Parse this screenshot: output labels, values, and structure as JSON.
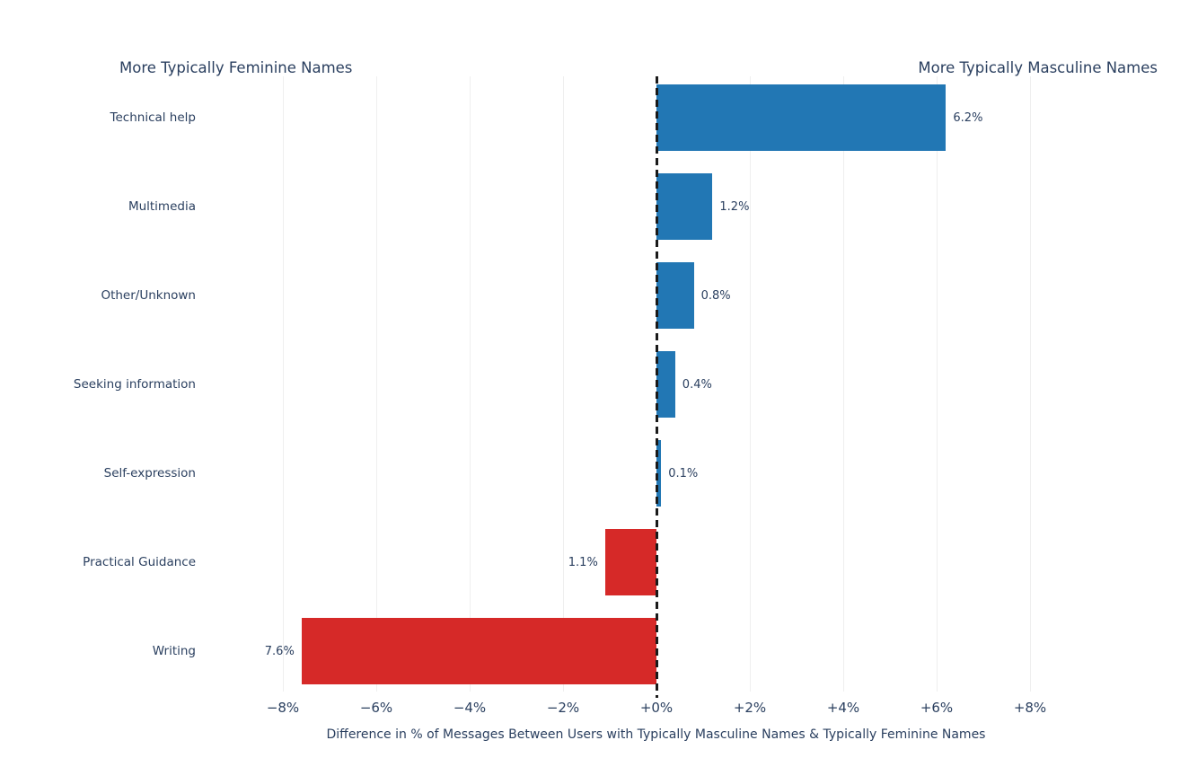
{
  "header": {
    "left": "More Typically Feminine Names",
    "right": "More Typically Masculine Names"
  },
  "chart_data": {
    "type": "bar",
    "orientation": "horizontal",
    "title": "",
    "categories": [
      "Technical help",
      "Multimedia",
      "Other/Unknown",
      "Seeking information",
      "Self-expression",
      "Practical Guidance",
      "Writing"
    ],
    "values": [
      6.2,
      1.2,
      0.8,
      0.4,
      0.1,
      -1.1,
      -7.6
    ],
    "bar_labels": [
      "6.2%",
      "1.2%",
      "0.8%",
      "0.4%",
      "0.1%",
      "1.1%",
      "7.6%"
    ],
    "xlabel": "Difference in % of Messages Between Users with Typically Masculine Names & Typically Feminine Names",
    "ylabel": "",
    "x_ticks": [
      -8,
      -6,
      -4,
      -2,
      0,
      2,
      4,
      6,
      8
    ],
    "x_tick_labels": [
      "−8%",
      "−6%",
      "−4%",
      "−2%",
      "+0%",
      "+2%",
      "+4%",
      "+6%",
      "+8%"
    ],
    "xlim": [
      -9,
      9
    ],
    "grid": true,
    "zero_line_style": "dashed",
    "legend": "none",
    "annotations": {
      "left_header": "More Typically Feminine Names",
      "right_header": "More Typically Masculine Names"
    },
    "colors": {
      "positive_bar": "#2277b4",
      "negative_bar": "#d62928",
      "text": "#2a3f5f",
      "gridline": "#efefef",
      "zero_line": "#1a1a1a",
      "background": "#ffffff"
    }
  }
}
